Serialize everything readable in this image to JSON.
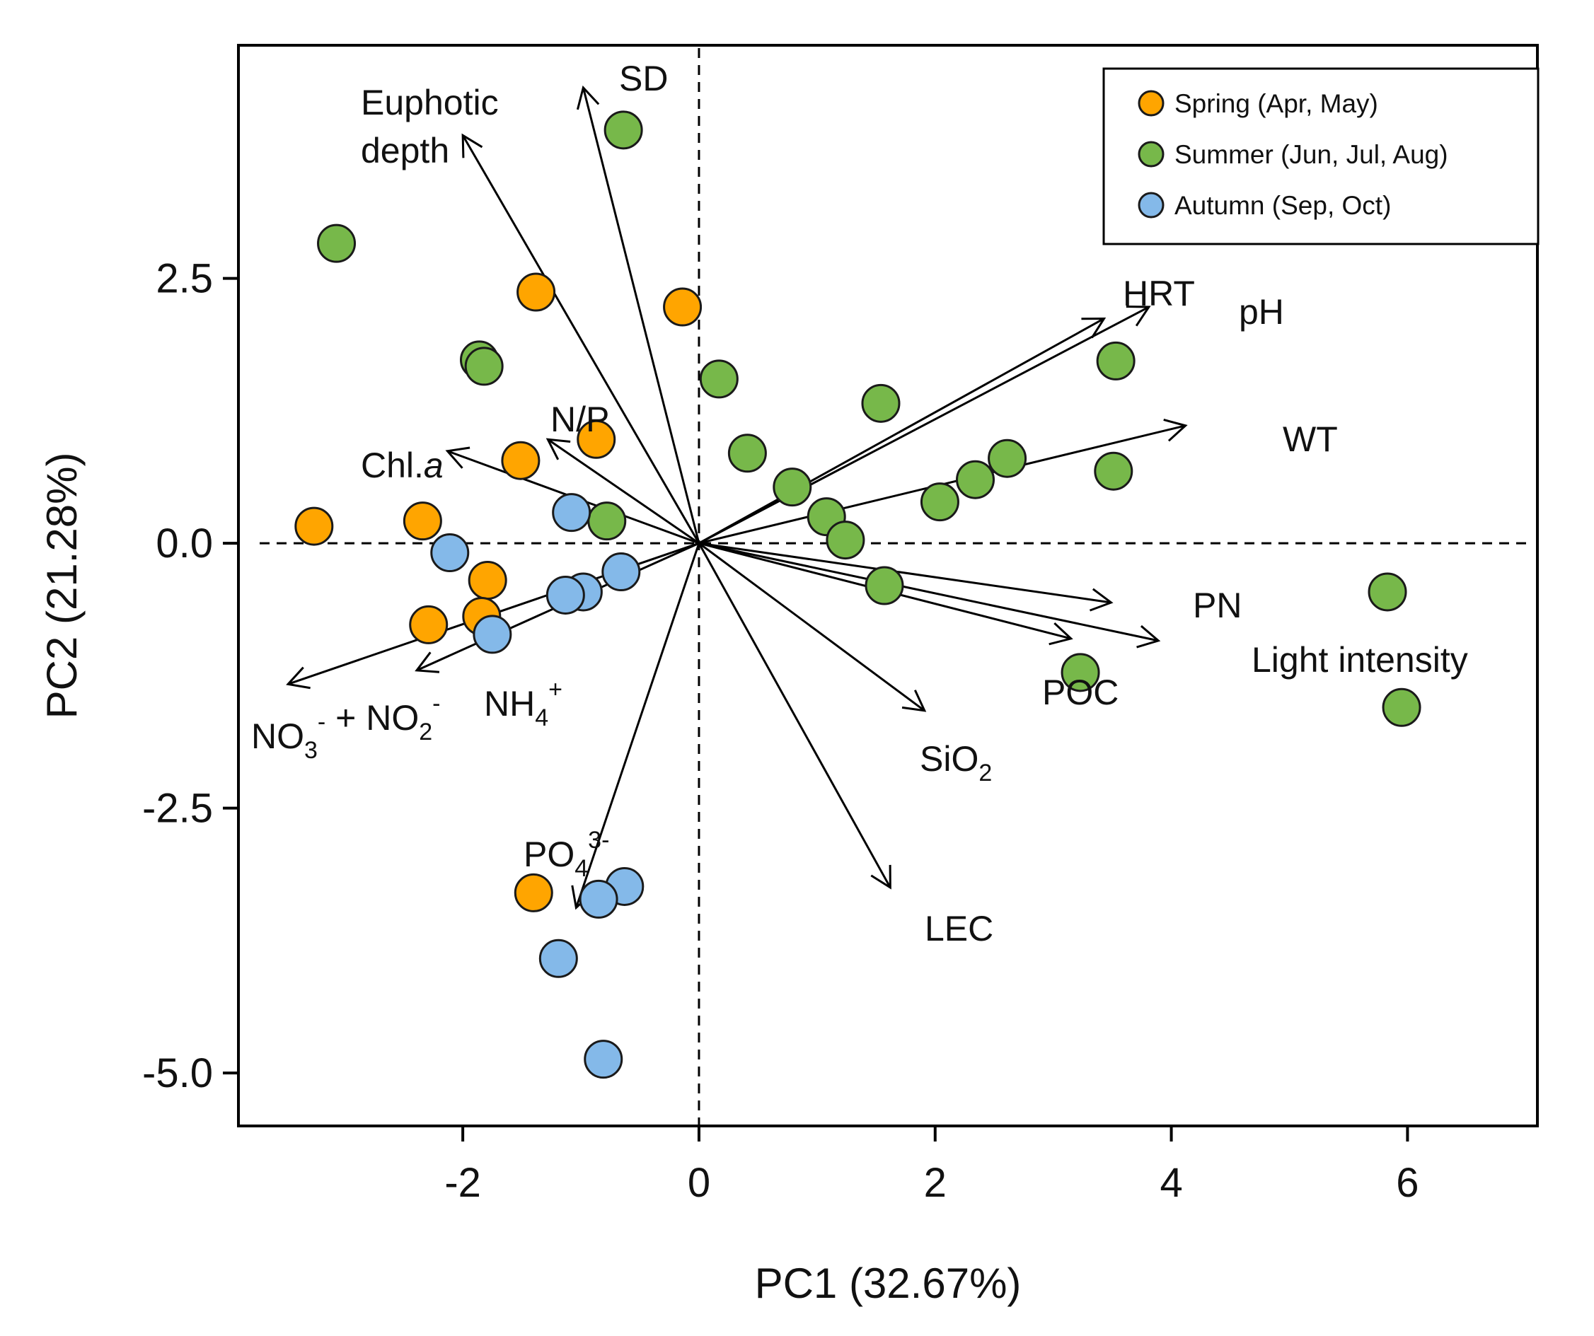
{
  "chart_data": {
    "type": "scatter",
    "title": "",
    "xlabel": "PC1 (32.67%)",
    "ylabel": "PC2 (21.28%)",
    "xlim": [
      -3.9,
      7.1
    ],
    "ylim": [
      -5.5,
      4.7
    ],
    "x_ticks": [
      {
        "value": -2,
        "label": "-2"
      },
      {
        "value": 0,
        "label": "0"
      },
      {
        "value": 2,
        "label": "2"
      },
      {
        "value": 4,
        "label": "4"
      },
      {
        "value": 6,
        "label": "6"
      }
    ],
    "y_ticks": [
      {
        "value": 2.5,
        "label": "2.5"
      },
      {
        "value": 0,
        "label": "0.0"
      },
      {
        "value": -2.5,
        "label": "-2.5"
      },
      {
        "value": -5,
        "label": "-5.0"
      }
    ],
    "reference_lines": {
      "x": 0,
      "y": 0,
      "style": "dashed"
    },
    "legend": {
      "position": "top-right",
      "entries": [
        {
          "key": "spring",
          "label": "Spring (Apr, May)",
          "color": "#FFA500"
        },
        {
          "key": "summer",
          "label": "Summer (Jun, Jul,  Aug)",
          "color": "#77B84A"
        },
        {
          "key": "autumn",
          "label": "Autumn (Sep, Oct)",
          "color": "#84B9E9"
        }
      ]
    },
    "series": [
      {
        "key": "spring",
        "color": "#FFA500",
        "points": [
          {
            "x": -1.38,
            "y": 2.37
          },
          {
            "x": -0.14,
            "y": 2.23
          },
          {
            "x": -0.87,
            "y": 0.98
          },
          {
            "x": -1.51,
            "y": 0.78
          },
          {
            "x": -3.26,
            "y": 0.16
          },
          {
            "x": -2.34,
            "y": 0.21
          },
          {
            "x": -1.79,
            "y": -0.35
          },
          {
            "x": -1.84,
            "y": -0.69
          },
          {
            "x": -2.29,
            "y": -0.77
          },
          {
            "x": -1.4,
            "y": -3.3
          }
        ]
      },
      {
        "key": "summer",
        "color": "#77B84A",
        "points": [
          {
            "x": -0.64,
            "y": 3.9
          },
          {
            "x": -3.07,
            "y": 2.83
          },
          {
            "x": -1.86,
            "y": 1.73
          },
          {
            "x": -1.82,
            "y": 1.67
          },
          {
            "x": 0.17,
            "y": 1.55
          },
          {
            "x": 0.41,
            "y": 0.85
          },
          {
            "x": 0.79,
            "y": 0.53
          },
          {
            "x": 1.08,
            "y": 0.25
          },
          {
            "x": 1.24,
            "y": 0.03
          },
          {
            "x": 1.54,
            "y": 1.32
          },
          {
            "x": 2.04,
            "y": 0.39
          },
          {
            "x": 2.34,
            "y": 0.6
          },
          {
            "x": 2.61,
            "y": 0.8
          },
          {
            "x": 3.53,
            "y": 1.72
          },
          {
            "x": 3.51,
            "y": 0.68
          },
          {
            "x": -0.78,
            "y": 0.21
          },
          {
            "x": 1.57,
            "y": -0.4
          },
          {
            "x": 3.23,
            "y": -1.22
          },
          {
            "x": 5.83,
            "y": -0.46
          },
          {
            "x": 5.95,
            "y": -1.55
          }
        ]
      },
      {
        "key": "autumn",
        "color": "#84B9E9",
        "points": [
          {
            "x": -1.08,
            "y": 0.29
          },
          {
            "x": -2.11,
            "y": -0.09
          },
          {
            "x": -0.66,
            "y": -0.27
          },
          {
            "x": -0.98,
            "y": -0.46
          },
          {
            "x": -1.13,
            "y": -0.49
          },
          {
            "x": -1.75,
            "y": -0.86
          },
          {
            "x": -0.63,
            "y": -3.24
          },
          {
            "x": -0.85,
            "y": -3.36
          },
          {
            "x": -1.19,
            "y": -3.92
          },
          {
            "x": -0.81,
            "y": -4.87
          }
        ]
      }
    ],
    "loadings": [
      {
        "key": "sd",
        "text": "SD",
        "x": -0.98,
        "y": 4.3
      },
      {
        "key": "euphotic",
        "lines": [
          "Euphotic",
          "depth"
        ],
        "x": -2.0,
        "y": 3.85
      },
      {
        "key": "np",
        "text": "N/P",
        "x": -1.28,
        "y": 0.98
      },
      {
        "key": "chla",
        "text": "Chl.",
        "text_italic": "a",
        "x": -2.13,
        "y": 0.87
      },
      {
        "key": "no3",
        "parts": [
          "NO",
          "3",
          "-",
          " + NO",
          "2",
          "-"
        ],
        "x": -3.48,
        "y": -1.33
      },
      {
        "key": "nh4",
        "parts": [
          "NH",
          "4",
          "+"
        ],
        "x": -2.39,
        "y": -1.2
      },
      {
        "key": "po4",
        "parts": [
          "PO",
          "4",
          "3-"
        ],
        "x": -1.04,
        "y": -3.44
      },
      {
        "key": "hrt",
        "text": "HRT",
        "x": 3.43,
        "y": 2.12
      },
      {
        "key": "ph",
        "text": "pH",
        "x": 3.81,
        "y": 2.23
      },
      {
        "key": "wt",
        "text": "WT",
        "x": 4.12,
        "y": 1.11
      },
      {
        "key": "pn",
        "text": "PN",
        "x": 3.49,
        "y": -0.56
      },
      {
        "key": "light",
        "text": "Light intensity",
        "x": 3.89,
        "y": -0.92
      },
      {
        "key": "poc",
        "text": "POC",
        "x": 3.15,
        "y": -0.9
      },
      {
        "key": "sio2",
        "parts": [
          "SiO",
          "2"
        ],
        "x": 1.91,
        "y": -1.58
      },
      {
        "key": "lec",
        "text": "LEC",
        "x": 1.62,
        "y": -3.25
      }
    ]
  }
}
